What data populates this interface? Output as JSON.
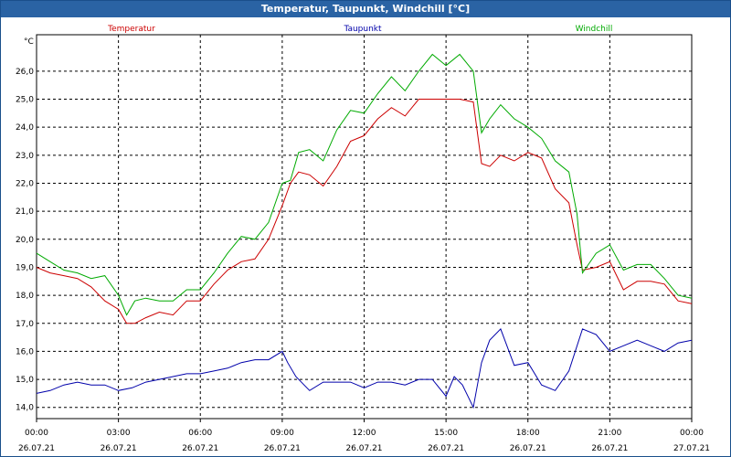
{
  "window": {
    "title": "Temperatur, Taupunkt, Windchill [°C]"
  },
  "chart_data": {
    "type": "line",
    "title": "Temperatur, Taupunkt, Windchill [°C]",
    "ylabel": "°C",
    "xlabel": "",
    "ylim": [
      13.6,
      27.3
    ],
    "xlim": [
      0,
      24
    ],
    "grid": true,
    "yticks": [
      "14,0",
      "15,0",
      "16,0",
      "17,0",
      "18,0",
      "19,0",
      "20,0",
      "21,0",
      "22,0",
      "23,0",
      "24,0",
      "25,0",
      "26,0"
    ],
    "ytick_values": [
      14,
      15,
      16,
      17,
      18,
      19,
      20,
      21,
      22,
      23,
      24,
      25,
      26
    ],
    "xtick_values": [
      0,
      3,
      6,
      9,
      12,
      15,
      18,
      21,
      24
    ],
    "xticks": [
      {
        "time": "00:00",
        "date": "26.07.21"
      },
      {
        "time": "03:00",
        "date": "26.07.21"
      },
      {
        "time": "06:00",
        "date": "26.07.21"
      },
      {
        "time": "09:00",
        "date": "26.07.21"
      },
      {
        "time": "12:00",
        "date": "26.07.21"
      },
      {
        "time": "15:00",
        "date": "26.07.21"
      },
      {
        "time": "18:00",
        "date": "26.07.21"
      },
      {
        "time": "21:00",
        "date": "26.07.21"
      },
      {
        "time": "00:00",
        "date": "27.07.21"
      }
    ],
    "series": [
      {
        "name": "Temperatur",
        "color": "#cc0000",
        "x": [
          0,
          0.5,
          1,
          1.5,
          2,
          2.5,
          3,
          3.3,
          3.6,
          4,
          4.5,
          5,
          5.5,
          6,
          6.5,
          7,
          7.5,
          8,
          8.5,
          9,
          9.3,
          9.6,
          10,
          10.5,
          11,
          11.5,
          12,
          12.5,
          13,
          13.5,
          14,
          14.5,
          15,
          15.5,
          16,
          16.3,
          16.6,
          17,
          17.5,
          18,
          18.5,
          19,
          19.5,
          19.8,
          20,
          20.5,
          21,
          21.5,
          22,
          22.5,
          23,
          23.5,
          24
        ],
        "values": [
          19.0,
          18.8,
          18.7,
          18.6,
          18.3,
          17.8,
          17.5,
          17.0,
          17.0,
          17.2,
          17.4,
          17.3,
          17.8,
          17.8,
          18.4,
          18.9,
          19.2,
          19.3,
          20.0,
          21.2,
          22.0,
          22.4,
          22.3,
          21.9,
          22.6,
          23.5,
          23.7,
          24.3,
          24.7,
          24.4,
          25.0,
          25.0,
          25.0,
          25.0,
          24.9,
          22.7,
          22.6,
          23.0,
          22.8,
          23.1,
          22.9,
          21.8,
          21.3,
          19.8,
          18.9,
          19.0,
          19.2,
          18.2,
          18.5,
          18.5,
          18.4,
          17.8,
          17.7
        ]
      },
      {
        "name": "Taupunkt",
        "color": "#0000aa",
        "x": [
          0,
          0.5,
          1,
          1.5,
          2,
          2.5,
          3,
          3.5,
          4,
          4.5,
          5,
          5.5,
          6,
          6.5,
          7,
          7.5,
          8,
          8.5,
          9,
          9.2,
          9.5,
          10,
          10.5,
          11,
          11.5,
          12,
          12.5,
          13,
          13.5,
          14,
          14.5,
          15,
          15.3,
          15.6,
          16,
          16.3,
          16.6,
          17,
          17.5,
          18,
          18.5,
          19,
          19.5,
          20,
          20.5,
          21,
          21.5,
          22,
          22.5,
          23,
          23.5,
          24
        ],
        "values": [
          14.5,
          14.6,
          14.8,
          14.9,
          14.8,
          14.8,
          14.6,
          14.7,
          14.9,
          15.0,
          15.1,
          15.2,
          15.2,
          15.3,
          15.4,
          15.6,
          15.7,
          15.7,
          16.0,
          15.6,
          15.1,
          14.6,
          14.9,
          14.9,
          14.9,
          14.7,
          14.9,
          14.9,
          14.8,
          15.0,
          15.0,
          14.4,
          15.1,
          14.8,
          14.0,
          15.6,
          16.4,
          16.8,
          15.5,
          15.6,
          14.8,
          14.6,
          15.3,
          16.8,
          16.6,
          16.0,
          16.2,
          16.4,
          16.2,
          16.0,
          16.3,
          16.4
        ]
      },
      {
        "name": "Windchill",
        "color": "#00aa00",
        "x": [
          0,
          0.5,
          1,
          1.5,
          2,
          2.5,
          3,
          3.3,
          3.6,
          4,
          4.5,
          5,
          5.5,
          6,
          6.5,
          7,
          7.5,
          8,
          8.5,
          9,
          9.3,
          9.6,
          10,
          10.5,
          11,
          11.5,
          12,
          12.5,
          13,
          13.5,
          14,
          14.5,
          15,
          15.5,
          16,
          16.3,
          16.6,
          17,
          17.5,
          18,
          18.5,
          19,
          19.5,
          19.8,
          20,
          20.5,
          21,
          21.5,
          22,
          22.5,
          23,
          23.5,
          24
        ],
        "values": [
          19.5,
          19.2,
          18.9,
          18.8,
          18.6,
          18.7,
          18.0,
          17.3,
          17.8,
          17.9,
          17.8,
          17.8,
          18.2,
          18.2,
          18.8,
          19.5,
          20.1,
          20.0,
          20.6,
          22.0,
          22.1,
          23.1,
          23.2,
          22.8,
          23.9,
          24.6,
          24.5,
          25.2,
          25.8,
          25.3,
          26.0,
          26.6,
          26.2,
          26.6,
          26.0,
          23.8,
          24.3,
          24.8,
          24.3,
          24.0,
          23.6,
          22.8,
          22.4,
          20.9,
          18.8,
          19.5,
          19.8,
          18.9,
          19.1,
          19.1,
          18.6,
          18.0,
          17.9
        ]
      }
    ]
  }
}
